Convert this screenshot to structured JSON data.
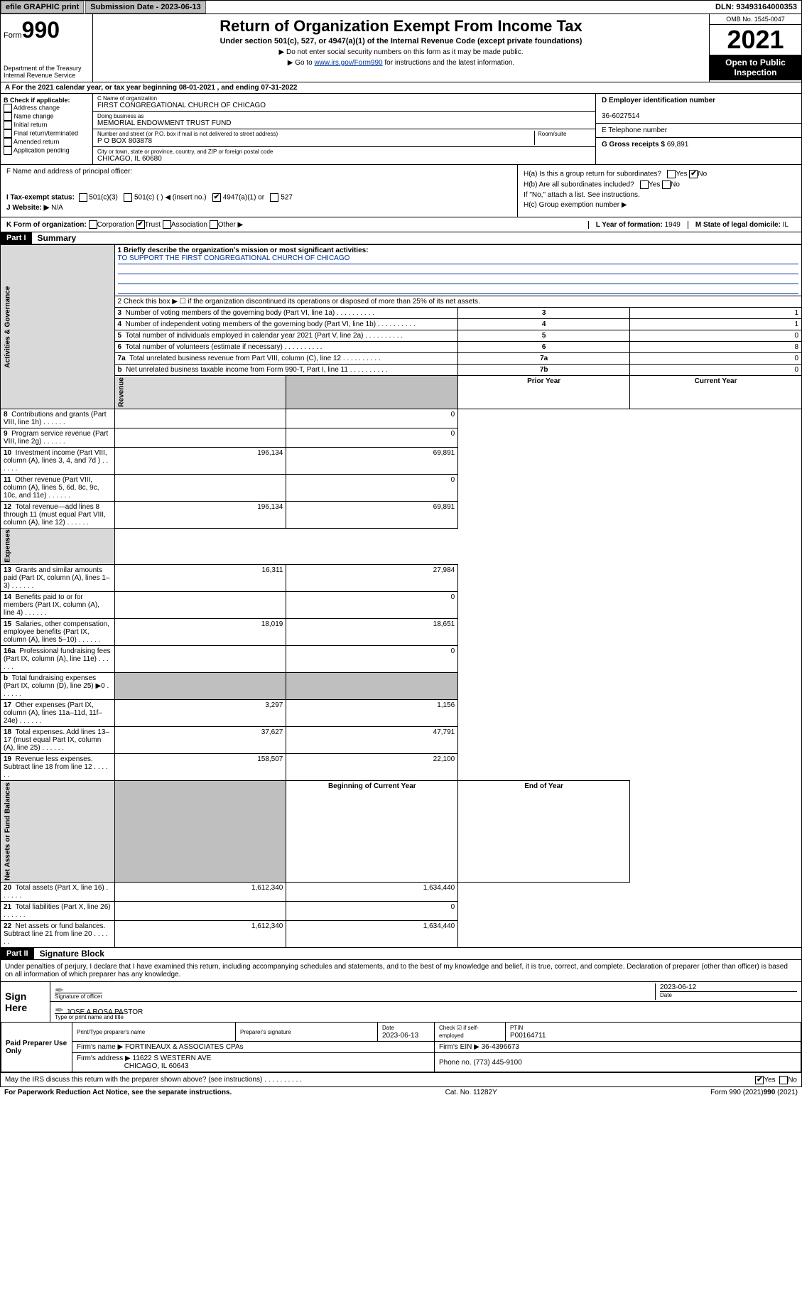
{
  "topbar": {
    "efile": "efile GRAPHIC print",
    "sub_label": "Submission Date - 2023-06-13",
    "dln": "DLN: 93493164000353"
  },
  "header": {
    "form_word": "Form",
    "form_num": "990",
    "dept": "Department of the Treasury\nInternal Revenue Service",
    "title": "Return of Organization Exempt From Income Tax",
    "sub": "Under section 501(c), 527, or 4947(a)(1) of the Internal Revenue Code (except private foundations)",
    "line1": "▶ Do not enter social security numbers on this form as it may be made public.",
    "line2_pre": "▶ Go to ",
    "line2_link": "www.irs.gov/Form990",
    "line2_post": " for instructions and the latest information.",
    "omb": "OMB No. 1545-0047",
    "year": "2021",
    "open": "Open to Public Inspection"
  },
  "period": "A For the 2021 calendar year, or tax year beginning 08-01-2021   , and ending 07-31-2022",
  "sectionB": {
    "label": "B Check if applicable:",
    "items": [
      "Address change",
      "Name change",
      "Initial return",
      "Final return/terminated",
      "Amended return",
      "Application pending"
    ]
  },
  "sectionC": {
    "name_label": "C Name of organization",
    "name": "FIRST CONGREGATIONAL CHURCH OF CHICAGO",
    "dba_label": "Doing business as",
    "dba": "MEMORIAL ENDOWMENT TRUST FUND",
    "addr_label": "Number and street (or P.O. box if mail is not delivered to street address)",
    "room_label": "Room/suite",
    "addr": "P O BOX 803878",
    "city_label": "City or town, state or province, country, and ZIP or foreign postal code",
    "city": "CHICAGO, IL  60680"
  },
  "sectionD": {
    "label": "D Employer identification number",
    "val": "36-6027514"
  },
  "sectionE": {
    "label": "E Telephone number",
    "val": ""
  },
  "sectionG": {
    "label": "G Gross receipts $",
    "val": "69,891"
  },
  "sectionF": "F  Name and address of principal officer:",
  "sectionH": {
    "a": "H(a)  Is this a group return for subordinates?",
    "b": "H(b)  Are all subordinates included?",
    "b_note": "If \"No,\" attach a list. See instructions.",
    "c": "H(c)  Group exemption number ▶"
  },
  "sectionI": {
    "label": "I  Tax-exempt status:",
    "opts": [
      "501(c)(3)",
      "501(c) (   ) ◀ (insert no.)",
      "4947(a)(1) or",
      "527"
    ]
  },
  "sectionJ": {
    "label": "J  Website: ▶",
    "val": "N/A"
  },
  "sectionK": "K Form of organization:",
  "sectionK_opts": [
    "Corporation",
    "Trust",
    "Association",
    "Other ▶"
  ],
  "sectionL": {
    "label": "L Year of formation:",
    "val": "1949"
  },
  "sectionM": {
    "label": "M State of legal domicile:",
    "val": "IL"
  },
  "part1": {
    "header": "Part I",
    "title": "Summary",
    "mission_label": "1   Briefly describe the organization's mission or most significant activities:",
    "mission": "TO SUPPORT THE FIRST CONGREGATIONAL CHURCH OF CHICAGO",
    "line2": "2   Check this box ▶ ☐  if the organization discontinued its operations or disposed of more than 25% of its net assets.",
    "side_labels": {
      "gov": "Activities & Governance",
      "rev": "Revenue",
      "exp": "Expenses",
      "net": "Net Assets or Fund Balances"
    },
    "gov_rows": [
      {
        "n": "3",
        "t": "Number of voting members of the governing body (Part VI, line 1a)",
        "box": "3",
        "v": "1"
      },
      {
        "n": "4",
        "t": "Number of independent voting members of the governing body (Part VI, line 1b)",
        "box": "4",
        "v": "1"
      },
      {
        "n": "5",
        "t": "Total number of individuals employed in calendar year 2021 (Part V, line 2a)",
        "box": "5",
        "v": "0"
      },
      {
        "n": "6",
        "t": "Total number of volunteers (estimate if necessary)",
        "box": "6",
        "v": "8"
      },
      {
        "n": "7a",
        "t": "Total unrelated business revenue from Part VIII, column (C), line 12",
        "box": "7a",
        "v": "0"
      },
      {
        "n": "b",
        "t": "Net unrelated business taxable income from Form 990-T, Part I, line 11",
        "box": "7b",
        "v": "0"
      }
    ],
    "col_prior": "Prior Year",
    "col_current": "Current Year",
    "rev_rows": [
      {
        "n": "8",
        "t": "Contributions and grants (Part VIII, line 1h)",
        "p": "",
        "c": "0"
      },
      {
        "n": "9",
        "t": "Program service revenue (Part VIII, line 2g)",
        "p": "",
        "c": "0"
      },
      {
        "n": "10",
        "t": "Investment income (Part VIII, column (A), lines 3, 4, and 7d )",
        "p": "196,134",
        "c": "69,891"
      },
      {
        "n": "11",
        "t": "Other revenue (Part VIII, column (A), lines 5, 6d, 8c, 9c, 10c, and 11e)",
        "p": "",
        "c": "0"
      },
      {
        "n": "12",
        "t": "Total revenue—add lines 8 through 11 (must equal Part VIII, column (A), line 12)",
        "p": "196,134",
        "c": "69,891"
      }
    ],
    "exp_rows": [
      {
        "n": "13",
        "t": "Grants and similar amounts paid (Part IX, column (A), lines 1–3)",
        "p": "16,311",
        "c": "27,984"
      },
      {
        "n": "14",
        "t": "Benefits paid to or for members (Part IX, column (A), line 4)",
        "p": "",
        "c": "0"
      },
      {
        "n": "15",
        "t": "Salaries, other compensation, employee benefits (Part IX, column (A), lines 5–10)",
        "p": "18,019",
        "c": "18,651"
      },
      {
        "n": "16a",
        "t": "Professional fundraising fees (Part IX, column (A), line 11e)",
        "p": "",
        "c": "0"
      },
      {
        "n": "b",
        "t": "Total fundraising expenses (Part IX, column (D), line 25) ▶0",
        "p": "SHADE",
        "c": "SHADE"
      },
      {
        "n": "17",
        "t": "Other expenses (Part IX, column (A), lines 11a–11d, 11f–24e)",
        "p": "3,297",
        "c": "1,156"
      },
      {
        "n": "18",
        "t": "Total expenses. Add lines 13–17 (must equal Part IX, column (A), line 25)",
        "p": "37,627",
        "c": "47,791"
      },
      {
        "n": "19",
        "t": "Revenue less expenses. Subtract line 18 from line 12",
        "p": "158,507",
        "c": "22,100"
      }
    ],
    "col_begin": "Beginning of Current Year",
    "col_end": "End of Year",
    "net_rows": [
      {
        "n": "20",
        "t": "Total assets (Part X, line 16)",
        "p": "1,612,340",
        "c": "1,634,440"
      },
      {
        "n": "21",
        "t": "Total liabilities (Part X, line 26)",
        "p": "",
        "c": "0"
      },
      {
        "n": "22",
        "t": "Net assets or fund balances. Subtract line 21 from line 20",
        "p": "1,612,340",
        "c": "1,634,440"
      }
    ]
  },
  "part2": {
    "header": "Part II",
    "title": "Signature Block",
    "decl": "Under penalties of perjury, I declare that I have examined this return, including accompanying schedules and statements, and to the best of my knowledge and belief, it is true, correct, and complete. Declaration of preparer (other than officer) is based on all information of which preparer has any knowledge.",
    "sign_here": "Sign Here",
    "sig_officer": "Signature of officer",
    "date_label": "Date",
    "date": "2023-06-12",
    "name": "JOSE A ROSA PASTOR",
    "name_label": "Type or print name and title",
    "paid": "Paid Preparer Use Only",
    "prep_name_label": "Print/Type preparer's name",
    "prep_sig_label": "Preparer's signature",
    "prep_date_label": "Date",
    "prep_date": "2023-06-13",
    "check_label": "Check ☑ if self-employed",
    "ptin_label": "PTIN",
    "ptin": "P00164711",
    "firm_name_label": "Firm's name      ▶",
    "firm_name": "FORTINEAUX & ASSOCIATES CPAs",
    "firm_ein_label": "Firm's EIN ▶",
    "firm_ein": "36-4396673",
    "firm_addr_label": "Firm's address ▶",
    "firm_addr1": "11622 S WESTERN AVE",
    "firm_addr2": "CHICAGO, IL  60643",
    "phone_label": "Phone no.",
    "phone": "(773) 445-9100",
    "discuss": "May the IRS discuss this return with the preparer shown above? (see instructions)"
  },
  "footer": {
    "left": "For Paperwork Reduction Act Notice, see the separate instructions.",
    "mid": "Cat. No. 11282Y",
    "right": "Form 990 (2021)"
  }
}
